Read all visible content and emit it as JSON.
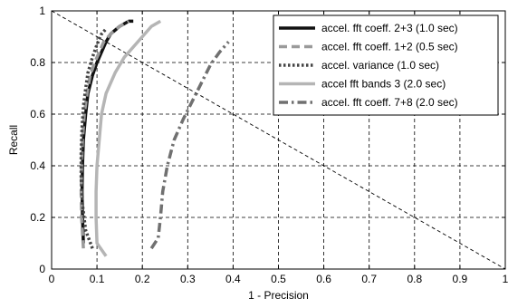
{
  "chart_data": {
    "type": "line",
    "title": "",
    "xlabel": "1 - Precision",
    "ylabel": "Recall",
    "xlim": [
      0,
      1
    ],
    "ylim": [
      0,
      1
    ],
    "xticks": [
      0,
      0.1,
      0.2,
      0.3,
      0.4,
      0.5,
      0.6,
      0.7,
      0.8,
      0.9,
      1
    ],
    "xtick_labels": [
      "0",
      "0.1",
      "0.2",
      "0.3",
      "0.4",
      "0.5",
      "0.6",
      "0.7",
      "0.8",
      "0.9",
      "1"
    ],
    "yticks": [
      0,
      0.2,
      0.4,
      0.6,
      0.8,
      1
    ],
    "ytick_labels": [
      "0",
      "0.2",
      "0.4",
      "0.6",
      "0.8",
      "1"
    ],
    "grid": true,
    "legend_position": "top-right",
    "series": [
      {
        "name": "accel. fft coeff. 2+3 (1.0 sec)",
        "color": "#111111",
        "dash": "solid",
        "x": [
          0.07,
          0.068,
          0.067,
          0.068,
          0.07,
          0.075,
          0.08,
          0.09,
          0.1,
          0.11,
          0.12,
          0.13,
          0.15,
          0.17,
          0.18
        ],
        "y": [
          0.1,
          0.2,
          0.3,
          0.4,
          0.5,
          0.6,
          0.68,
          0.75,
          0.8,
          0.84,
          0.88,
          0.91,
          0.94,
          0.96,
          0.96
        ]
      },
      {
        "name": "accel. fft coeff. 1+2 (0.5 sec)",
        "color": "#9a9a9a",
        "dash": "dashed",
        "x": [
          0.07,
          0.066,
          0.065,
          0.066,
          0.068,
          0.072,
          0.078,
          0.085,
          0.095,
          0.105,
          0.115,
          0.13,
          0.15,
          0.17
        ],
        "y": [
          0.08,
          0.2,
          0.3,
          0.4,
          0.5,
          0.6,
          0.68,
          0.75,
          0.8,
          0.84,
          0.88,
          0.91,
          0.94,
          0.96
        ]
      },
      {
        "name": "accel. variance (1.0 sec)",
        "color": "#444444",
        "dash": "dotted",
        "x": [
          0.09,
          0.075,
          0.068,
          0.065,
          0.065,
          0.067,
          0.07,
          0.075,
          0.08,
          0.09,
          0.1,
          0.11,
          0.12
        ],
        "y": [
          0.08,
          0.15,
          0.25,
          0.35,
          0.45,
          0.55,
          0.63,
          0.7,
          0.76,
          0.82,
          0.87,
          0.91,
          0.93
        ]
      },
      {
        "name": "accel fft bands 3 (2.0 sec)",
        "color": "#b5b5b5",
        "dash": "solid",
        "x": [
          0.12,
          0.1,
          0.098,
          0.098,
          0.1,
          0.105,
          0.11,
          0.12,
          0.14,
          0.16,
          0.18,
          0.2,
          0.22,
          0.24
        ],
        "y": [
          0.05,
          0.1,
          0.2,
          0.3,
          0.4,
          0.5,
          0.6,
          0.68,
          0.76,
          0.82,
          0.86,
          0.9,
          0.94,
          0.96
        ]
      },
      {
        "name": "accel. fft coeff. 7+8 (2.0 sec)",
        "color": "#707070",
        "dash": "dashdot",
        "x": [
          0.22,
          0.235,
          0.24,
          0.245,
          0.255,
          0.27,
          0.29,
          0.31,
          0.33,
          0.35,
          0.37,
          0.39
        ],
        "y": [
          0.08,
          0.12,
          0.2,
          0.3,
          0.4,
          0.5,
          0.58,
          0.65,
          0.72,
          0.79,
          0.84,
          0.88
        ]
      }
    ],
    "reference_line": {
      "x": [
        0,
        1
      ],
      "y": [
        1,
        0
      ]
    }
  }
}
